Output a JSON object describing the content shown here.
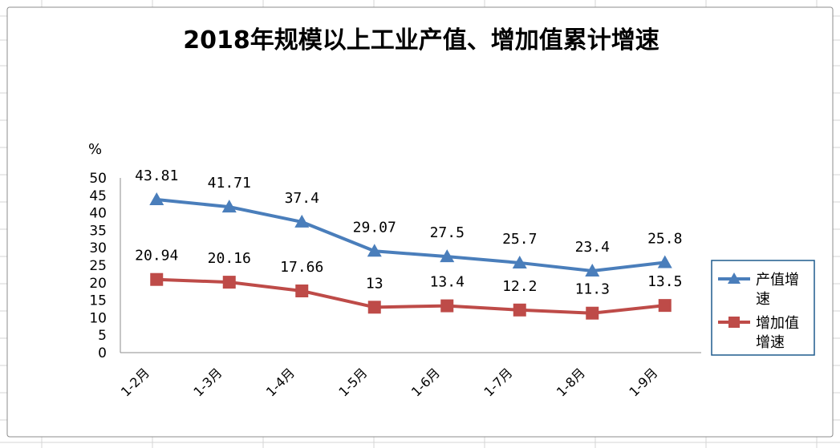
{
  "chart_data": {
    "type": "line",
    "title": "2018年规模以上工业产值、增加值累计增速",
    "ylabel": "%",
    "xlabel": "",
    "ylim": [
      0,
      50
    ],
    "yticks": [
      0,
      5,
      10,
      15,
      20,
      25,
      30,
      35,
      40,
      45,
      50
    ],
    "categories": [
      "1-2月",
      "1-3月",
      "1-4月",
      "1-5月",
      "1-6月",
      "1-7月",
      "1-8月",
      "1-9月"
    ],
    "series": [
      {
        "name": "产值增速",
        "legend_lines": [
          "产值增",
          "速"
        ],
        "marker": "triangle",
        "color": "#4a7ebb",
        "values": [
          43.81,
          41.71,
          37.4,
          29.07,
          27.5,
          25.7,
          23.4,
          25.8
        ],
        "labels": [
          "43.81",
          "41.71",
          "37.4",
          "29.07",
          "27.5",
          "25.7",
          "23.4",
          "25.8"
        ]
      },
      {
        "name": "增加值增速",
        "legend_lines": [
          "增加值",
          "增速"
        ],
        "marker": "square",
        "color": "#be4b48",
        "values": [
          20.94,
          20.16,
          17.66,
          13,
          13.4,
          12.2,
          11.3,
          13.5
        ],
        "labels": [
          "20.94",
          "20.16",
          "17.66",
          "13",
          "13.4",
          "12.2",
          "11.3",
          "13.5"
        ]
      }
    ],
    "legend_position": "right",
    "grid": false
  }
}
